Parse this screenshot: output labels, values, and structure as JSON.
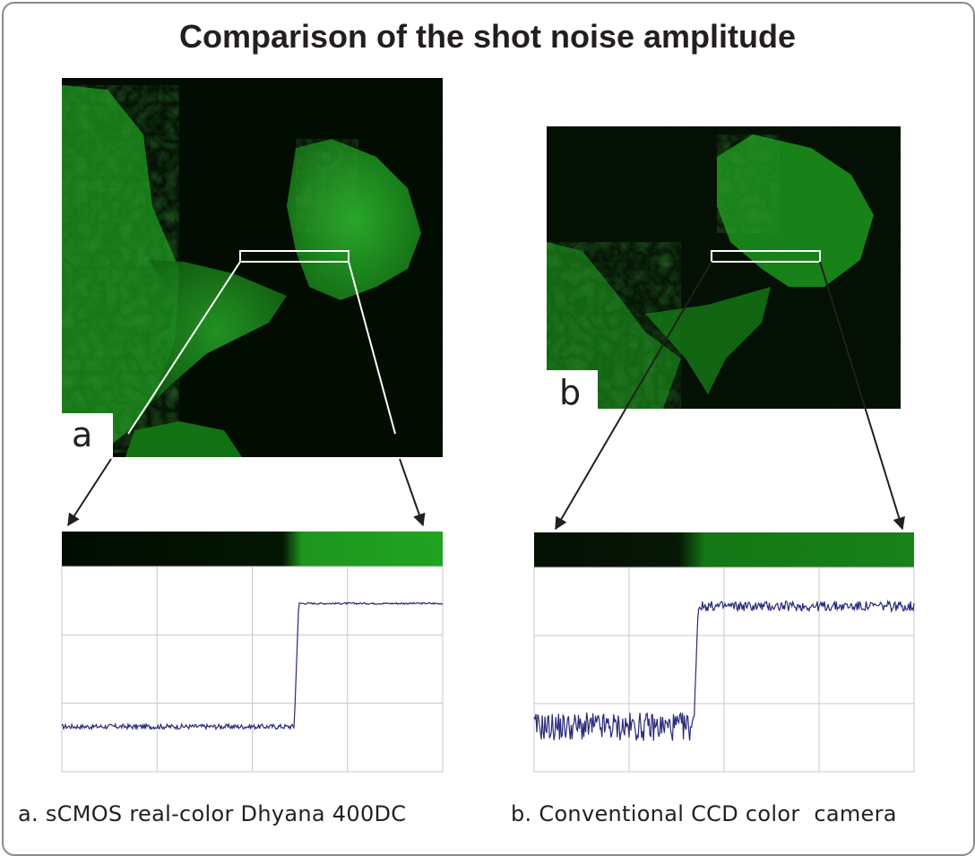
{
  "title": "Comparison of the shot noise amplitude",
  "panels": {
    "a": {
      "tag": "a",
      "caption": "a. sCMOS real-color Dhyana 400DC"
    },
    "b": {
      "tag": "b",
      "caption": "b. Conventional CCD color  camera"
    }
  },
  "colors": {
    "trace": "#2a2a7a",
    "grid": "#c8c8c8",
    "fluorescence": "#1fa31f",
    "roi_box": "#ffffff",
    "arrow_a": "#ffffff",
    "arrow_b": "#231f20"
  },
  "chart_data": [
    {
      "type": "line",
      "title": "",
      "xlabel": "",
      "ylabel": "",
      "panel": "a",
      "grid": true,
      "grid_divisions": {
        "x": 4,
        "y": 3
      },
      "xlim": [
        0,
        1
      ],
      "ylim": [
        0,
        1
      ],
      "series": [
        {
          "low_level": 0.22,
          "high_level": 0.82,
          "step_at": 0.61,
          "noise_amplitude": 0.012
        }
      ]
    },
    {
      "type": "line",
      "title": "",
      "xlabel": "",
      "ylabel": "",
      "panel": "b",
      "grid": true,
      "grid_divisions": {
        "x": 4,
        "y": 3
      },
      "xlim": [
        0,
        1
      ],
      "ylim": [
        0,
        1
      ],
      "series": [
        {
          "low_level": 0.22,
          "high_level": 0.81,
          "step_at": 0.42,
          "noise_amplitude": 0.07
        }
      ]
    }
  ]
}
